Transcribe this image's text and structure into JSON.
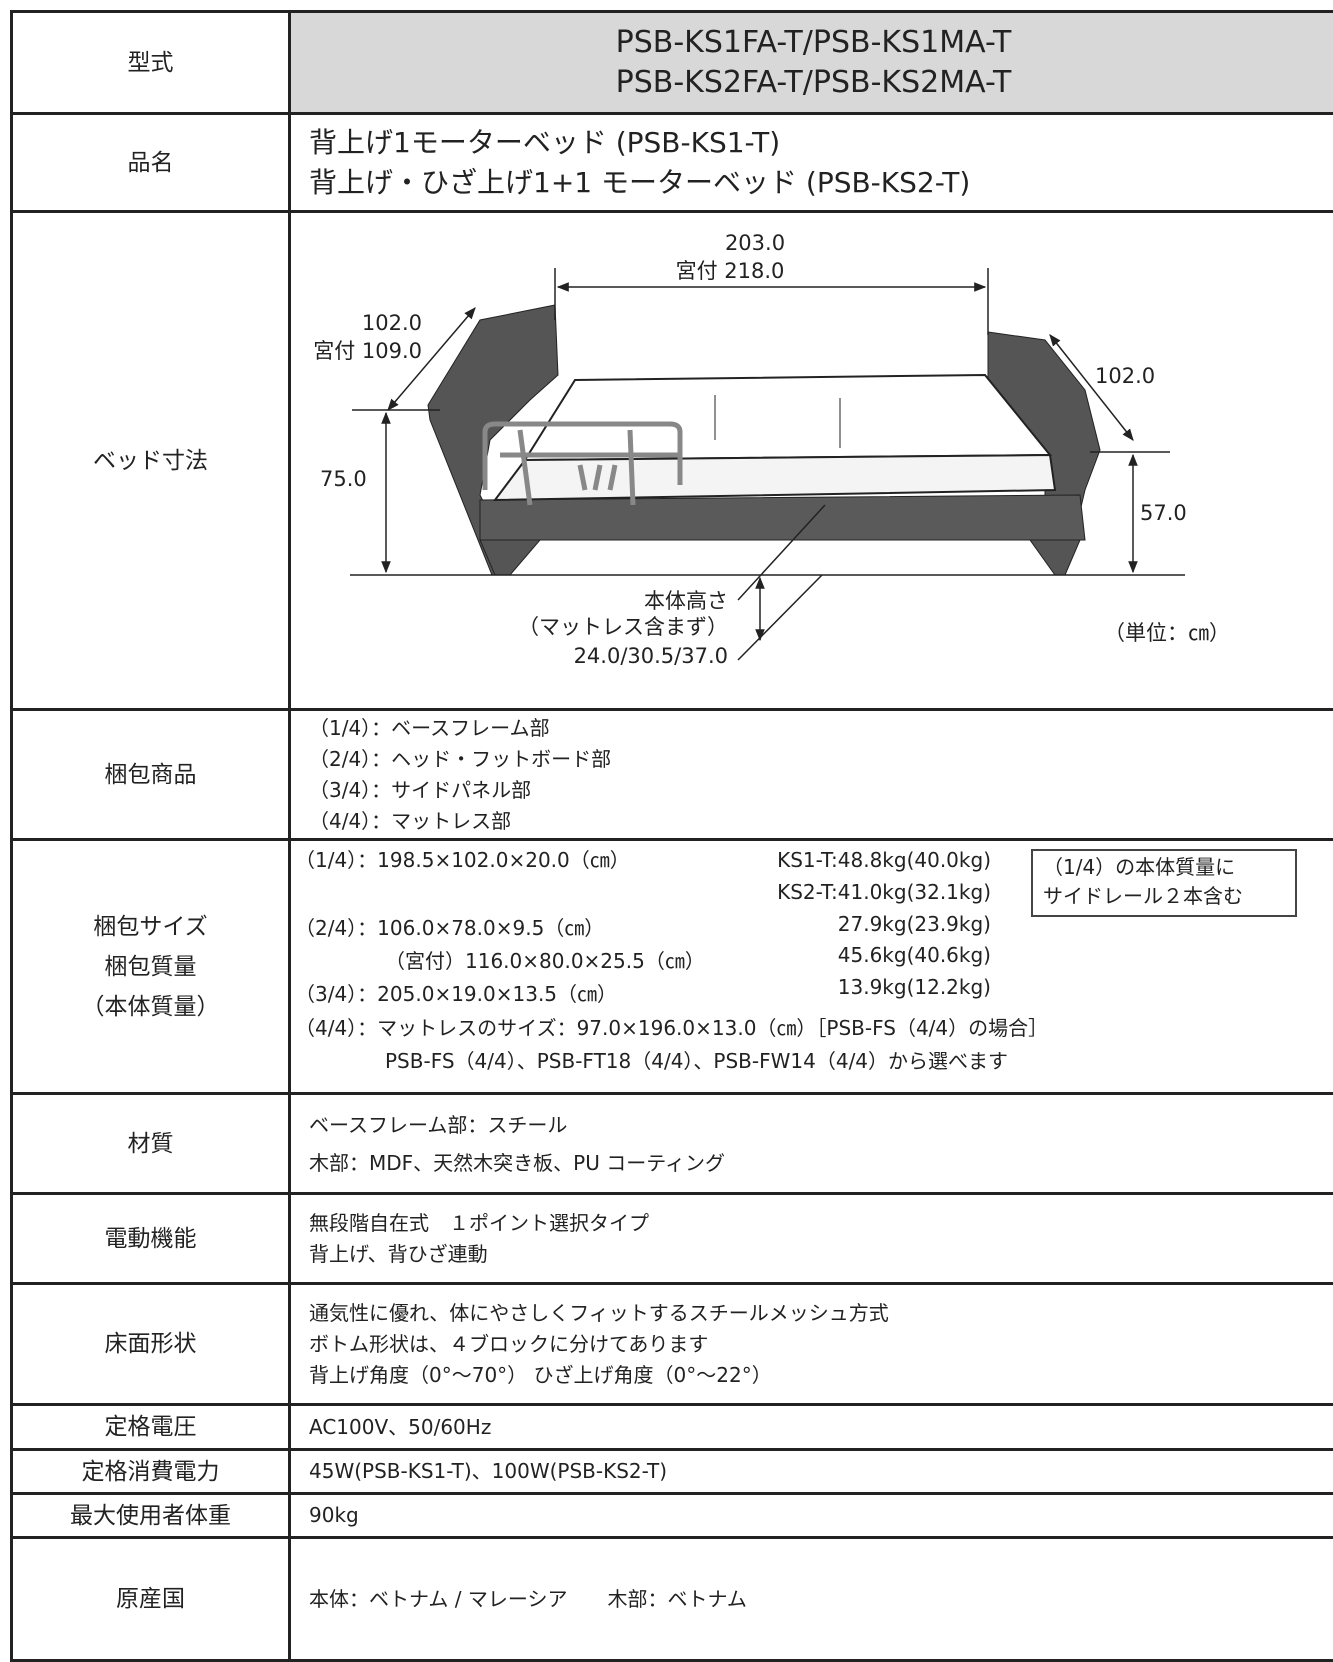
{
  "rows": [
    {
      "label": [
        "型式"
      ],
      "lines": [
        "PSB-KS1FA-T/PSB-KS1MA-T",
        "PSB-KS2FA-T/PSB-KS2MA-T"
      ]
    },
    {
      "label": [
        "品名"
      ],
      "lines": [
        "背上げ1モーターベッド (PSB-KS1-T)",
        "背上げ・ひざ上げ1+1 モーターベッド (PSB-KS2-T)"
      ]
    },
    {
      "label": [
        "ベッド寸法"
      ]
    },
    {
      "label": [
        "梱包商品"
      ],
      "lines": [
        "（1/4）：ベースフレーム部",
        "（2/4）：ヘッド・フットボード部",
        "（3/4）：サイドパネル部",
        "（4/4）：マットレス部"
      ]
    },
    {
      "label": [
        "梱包サイズ",
        "梱包質量",
        "（本体質量）"
      ],
      "lines": [
        "（1/4）：198.5×102.0×20.0（㎝）",
        "（2/4）：106.0×78.0×9.5（㎝）",
        "（宮付）116.0×80.0×25.5（㎝）",
        "（3/4）：205.0×19.0×13.5（㎝）",
        "（4/4）：マットレスのサイズ：97.0×196.0×13.0（㎝）［PSB-FS（4/4）の場合］",
        "PSB-FS（4/4）、PSB-FT18（4/4）、PSB-FW14（4/4）から選べます"
      ],
      "weights": [
        "KS1-T:48.8kg(40.0kg)",
        "KS2-T:41.0kg(32.1kg)",
        "27.9kg(23.9kg)",
        "45.6kg(40.6kg)",
        "13.9kg(12.2kg)"
      ],
      "note": [
        "（1/4）の本体質量に",
        "サイドレール２本含む"
      ]
    },
    {
      "label": [
        "材質"
      ],
      "lines": [
        "ベースフレーム部：スチール",
        "木部：MDF、天然木突き板、PU コーティング"
      ]
    },
    {
      "label": [
        "電動機能"
      ],
      "lines": [
        "無段階自在式　１ポイント選択タイプ",
        "背上げ、背ひざ連動"
      ]
    },
    {
      "label": [
        "床面形状"
      ],
      "lines": [
        "通気性に優れ、体にやさしくフィットするスチールメッシュ方式",
        "ボトム形状は、４ブロックに分けてあります",
        "背上げ角度（0°～70°） ひざ上げ角度（0°～22°）"
      ]
    },
    {
      "label": [
        "定格電圧"
      ],
      "lines": [
        "AC100V、50/60Hz"
      ]
    },
    {
      "label": [
        "定格消費電力"
      ],
      "lines": [
        "45W(PSB-KS1-T)、100W(PSB-KS2-T)"
      ]
    },
    {
      "label": [
        "最大使用者体重"
      ],
      "lines": [
        "90kg"
      ]
    },
    {
      "label": [
        "原産国"
      ],
      "lines": [
        "本体：ベトナム / マレーシア　　木部：ベトナム"
      ]
    }
  ],
  "diagram": {
    "length": "203.0",
    "length_total": "宮付 218.0",
    "width": "102.0",
    "width_total": "宮付 109.0",
    "foot_width": "102.0",
    "head_height": "75.0",
    "foot_height": "57.0",
    "body_height": [
      "本体高さ",
      "（マットレス含まず）",
      "24.0/30.5/37.0"
    ],
    "unit": "（単位：㎝）"
  }
}
